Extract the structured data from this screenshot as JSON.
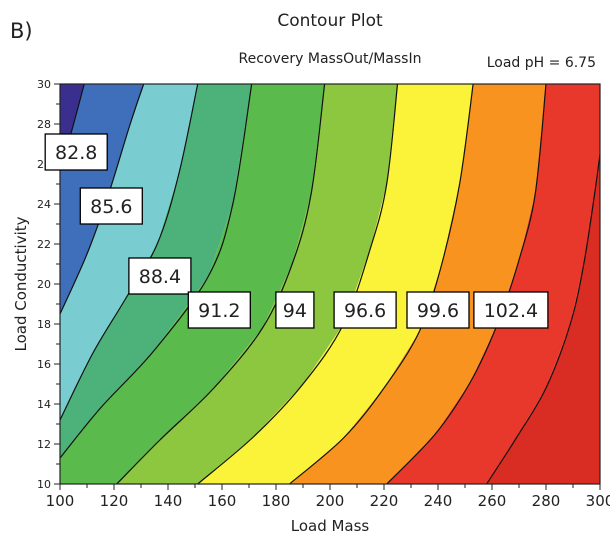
{
  "chart_data": {
    "type": "contour",
    "panel_label": "B)",
    "title": "Contour Plot",
    "subtitle": "Recovery MassOut/MassIn",
    "annotation": "Load pH = 6.75",
    "xlabel": "Load Mass",
    "ylabel": "Load Conductivity",
    "xlim": [
      100,
      300
    ],
    "ylim": [
      10,
      30
    ],
    "x_ticks": [
      "100",
      "120",
      "140",
      "160",
      "180",
      "200",
      "220",
      "240",
      "260",
      "280",
      "300"
    ],
    "y_ticks": [
      "10",
      "12",
      "14",
      "16",
      "18",
      "20",
      "22",
      "24",
      "26",
      "28",
      "30"
    ],
    "contour_levels": [
      {
        "value": "82.8",
        "line": [
          [
            100,
            25.8
          ],
          [
            104,
            27.5
          ],
          [
            109,
            30
          ]
        ],
        "label_at": [
          106,
          26.6
        ]
      },
      {
        "value": "85.6",
        "line": [
          [
            100,
            18.5
          ],
          [
            110,
            21.5
          ],
          [
            118,
            24.5
          ],
          [
            126,
            28
          ],
          [
            131,
            30
          ]
        ],
        "label_at": [
          119,
          23.9
        ]
      },
      {
        "value": "88.4",
        "line": [
          [
            100,
            13.2
          ],
          [
            112,
            16.5
          ],
          [
            124,
            19.2
          ],
          [
            136,
            22
          ],
          [
            144,
            25.5
          ],
          [
            151,
            30
          ]
        ],
        "label_at": [
          137,
          20.4
        ]
      },
      {
        "value": "91.2",
        "line": [
          [
            100,
            11.3
          ],
          [
            115,
            13.8
          ],
          [
            135,
            16.7
          ],
          [
            155,
            20.4
          ],
          [
            164,
            24
          ],
          [
            171,
            30
          ]
        ],
        "label_at": [
          159,
          18.7
        ]
      },
      {
        "value": "94",
        "line": [
          [
            121,
            10
          ],
          [
            137,
            12.2
          ],
          [
            157,
            14.8
          ],
          [
            175,
            17.8
          ],
          [
            186,
            21
          ],
          [
            193,
            24.5
          ],
          [
            198,
            30
          ]
        ],
        "label_at": [
          187,
          18.7
        ]
      },
      {
        "value": "96.6",
        "line": [
          [
            151,
            10
          ],
          [
            172,
            12.4
          ],
          [
            190,
            15
          ],
          [
            205,
            18
          ],
          [
            215,
            21.8
          ],
          [
            221,
            25
          ],
          [
            225,
            30
          ]
        ],
        "label_at": [
          213,
          18.7
        ]
      },
      {
        "value": "99.6",
        "line": [
          [
            185,
            10
          ],
          [
            205,
            12.3
          ],
          [
            220,
            14.8
          ],
          [
            233,
            17.6
          ],
          [
            241,
            20.8
          ],
          [
            248,
            25
          ],
          [
            253,
            30
          ]
        ],
        "label_at": [
          240,
          18.7
        ]
      },
      {
        "value": "102.4",
        "line": [
          [
            221,
            10
          ],
          [
            239,
            12.5
          ],
          [
            252,
            15.1
          ],
          [
            262,
            18
          ],
          [
            270,
            21.2
          ],
          [
            276,
            24.5
          ],
          [
            280,
            30
          ]
        ],
        "label_at": [
          267,
          18.7
        ]
      },
      {
        "value": "",
        "line": [
          [
            258,
            10
          ],
          [
            269,
            12.3
          ],
          [
            280,
            14.8
          ],
          [
            289,
            18
          ],
          [
            294,
            21
          ],
          [
            298,
            24.5
          ],
          [
            300,
            26.5
          ]
        ],
        "label_at": null
      }
    ],
    "fill_colors": [
      "#3a2f8e",
      "#3f6fbb",
      "#79cdd0",
      "#4cb27a",
      "#5bba4c",
      "#8dc63f",
      "#fbf23a",
      "#f8931f",
      "#e8382b",
      "#d92d24"
    ],
    "grid": false
  }
}
